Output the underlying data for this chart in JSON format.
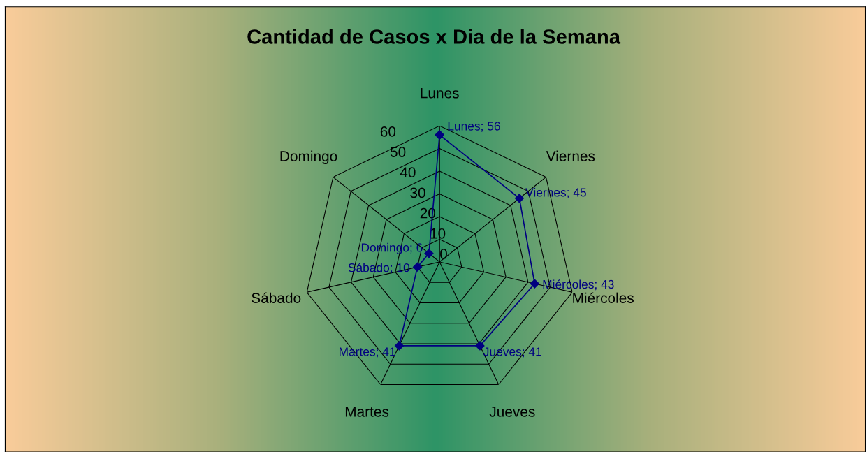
{
  "chart_data": {
    "type": "radar",
    "title": "Cantidad de Casos x Dia de la Semana",
    "categories": [
      "Lunes",
      "Viernes",
      "Miércoles",
      "Jueves",
      "Martes",
      "Sábado",
      "Domingo"
    ],
    "series": [
      {
        "color": "#000080",
        "values": [
          56,
          45,
          43,
          41,
          41,
          10,
          6
        ],
        "value_labels": [
          "Lunes; 56",
          "Viernes; 45",
          "Miércoles; 43",
          "Jueves; 41",
          "Martes; 41",
          "Sábado; 10",
          "Domingo; 6"
        ]
      }
    ],
    "ylim": [
      0,
      60
    ],
    "yticks": [
      0,
      10,
      20,
      30,
      40,
      50,
      60
    ],
    "grid": true,
    "marker": "diamond",
    "line_style": "solid"
  }
}
